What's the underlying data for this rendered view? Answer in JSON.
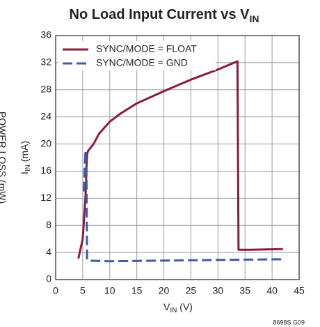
{
  "chart_data": {
    "type": "line",
    "title": [
      "No Load Input Current vs V",
      "IN"
    ],
    "y_label": [
      "I",
      "IN",
      " (mA)"
    ],
    "x_label": [
      "V",
      "IN",
      " (V)"
    ],
    "side_label": "POWER LOSS (mW)",
    "footnote": "8698S G09",
    "xlim": [
      0,
      45
    ],
    "xticks": [
      0,
      5,
      10,
      15,
      20,
      25,
      30,
      35,
      40,
      45
    ],
    "ylim": [
      0,
      36
    ],
    "yticks": [
      0,
      4,
      8,
      12,
      16,
      20,
      24,
      28,
      32,
      36
    ],
    "grid": true,
    "legend": "upper left",
    "series": [
      {
        "name": "SYNC/MODE = FLOAT",
        "color": "#8b1a3c",
        "dash": false,
        "x": [
          4.2,
          5.0,
          5.5,
          5.8,
          6.0,
          7.0,
          8.0,
          10.0,
          12.0,
          15.0,
          20.0,
          25.0,
          30.0,
          33.6,
          33.8,
          36.0,
          42.0
        ],
        "values": [
          3.1,
          6.0,
          12.0,
          18.5,
          19.0,
          20.0,
          21.5,
          23.3,
          24.5,
          26.0,
          27.8,
          29.5,
          31.0,
          32.2,
          4.4,
          4.4,
          4.5
        ]
      },
      {
        "name": "SYNC/MODE = GND",
        "color": "#3d5ba9",
        "dash": true,
        "x": [
          5.2,
          5.5,
          5.7,
          5.8,
          6.0,
          10.0,
          20.0,
          30.0,
          42.0
        ],
        "values": [
          13.0,
          19.0,
          16.0,
          3.0,
          2.8,
          2.7,
          2.8,
          2.9,
          3.0
        ]
      }
    ]
  }
}
